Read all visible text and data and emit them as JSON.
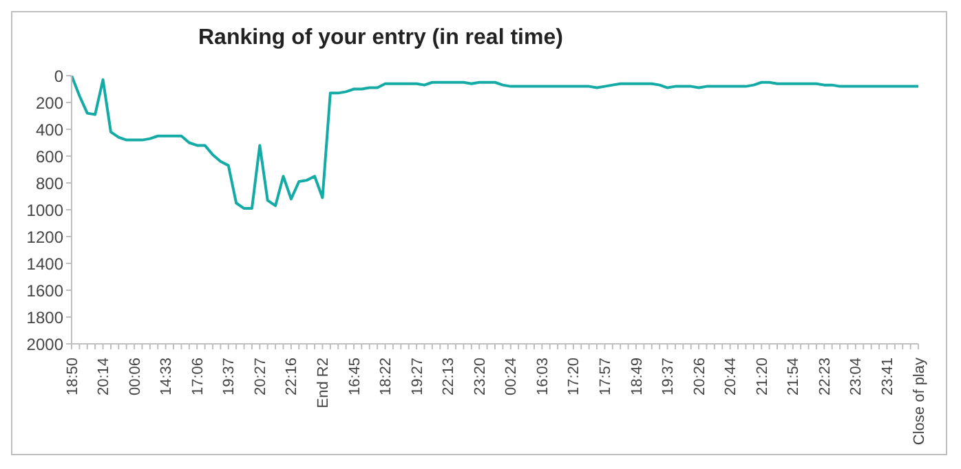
{
  "chart_data": {
    "type": "line",
    "title": "Ranking of your entry (in real time)",
    "categories": [
      "18:50",
      null,
      null,
      null,
      "20:14",
      null,
      null,
      null,
      "00:06",
      null,
      null,
      null,
      "14:33",
      null,
      null,
      null,
      "17:06",
      null,
      null,
      null,
      "19:37",
      null,
      null,
      null,
      "20:27",
      null,
      null,
      null,
      "22:16",
      null,
      null,
      null,
      "End R2",
      null,
      null,
      null,
      "16:45",
      null,
      null,
      null,
      "18:22",
      null,
      null,
      null,
      "19:27",
      null,
      null,
      null,
      "22:13",
      null,
      null,
      null,
      "23:20",
      null,
      null,
      null,
      "00:24",
      null,
      null,
      null,
      "16:03",
      null,
      null,
      null,
      "17:20",
      null,
      null,
      null,
      "17:57",
      null,
      null,
      null,
      "18:49",
      null,
      null,
      null,
      "19:37",
      null,
      null,
      null,
      "20:26",
      null,
      null,
      null,
      "20:44",
      null,
      null,
      null,
      "21:20",
      null,
      null,
      null,
      "21:54",
      null,
      null,
      null,
      "22:23",
      null,
      null,
      null,
      "23:04",
      null,
      null,
      null,
      "23:41",
      null,
      null,
      null,
      "Close of play"
    ],
    "series": [
      {
        "color": "#14aaa5",
        "values": [
          0,
          150,
          280,
          290,
          30,
          420,
          460,
          480,
          480,
          480,
          470,
          450,
          450,
          450,
          450,
          500,
          520,
          520,
          590,
          640,
          670,
          950,
          990,
          990,
          520,
          930,
          970,
          750,
          920,
          790,
          780,
          750,
          910,
          130,
          130,
          120,
          100,
          100,
          90,
          90,
          60,
          60,
          60,
          60,
          60,
          70,
          50,
          50,
          50,
          50,
          50,
          60,
          50,
          50,
          50,
          70,
          80,
          80,
          80,
          80,
          80,
          80,
          80,
          80,
          80,
          80,
          80,
          90,
          80,
          70,
          60,
          60,
          60,
          60,
          60,
          70,
          90,
          80,
          80,
          80,
          90,
          80,
          80,
          80,
          80,
          80,
          80,
          70,
          50,
          50,
          60,
          60,
          60,
          60,
          60,
          60,
          70,
          70,
          80,
          80,
          80,
          80,
          80,
          80,
          80,
          80,
          80,
          80,
          80
        ]
      }
    ],
    "ylim": [
      2000,
      0
    ],
    "yticks": [
      0,
      200,
      400,
      600,
      800,
      1000,
      1200,
      1400,
      1600,
      1800,
      2000
    ],
    "marker": "none",
    "line_style": "solid"
  }
}
